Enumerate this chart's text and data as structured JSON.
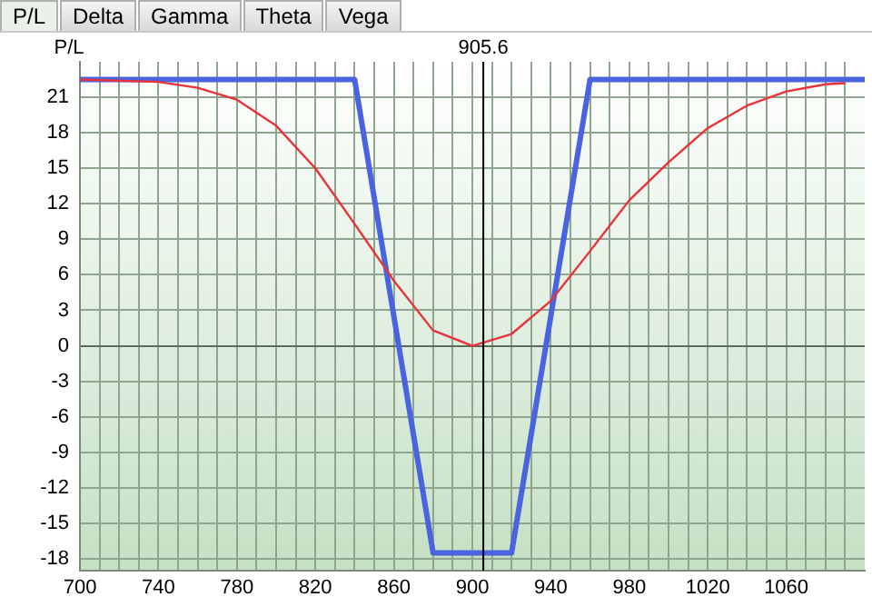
{
  "chart_data": {
    "type": "line",
    "ylabel": "P/L",
    "annotations": [
      "P/L",
      "Delta",
      "Gamma",
      "Theta",
      "Vega"
    ],
    "series": [
      {
        "color": "#4a64e0",
        "x": [
          700,
          840,
          880,
          920,
          960,
          1100
        ],
        "values": [
          22.5,
          22.5,
          -17.5,
          -17.5,
          22.5,
          22.5
        ]
      },
      {
        "color": "#e8333a",
        "x": [
          700,
          740,
          760,
          780,
          800,
          820,
          840,
          860,
          880,
          900,
          920,
          940,
          960,
          980,
          1000,
          1020,
          1040,
          1060,
          1080,
          1090
        ],
        "values": [
          22.5,
          22.3,
          21.8,
          20.8,
          18.6,
          15,
          10.3,
          5.5,
          1.3,
          0,
          1,
          3.8,
          8,
          12.3,
          15.5,
          18.4,
          20.3,
          21.5,
          22.1,
          22.2
        ]
      }
    ],
    "xlim": [
      700,
      1100
    ],
    "xticks": [
      700,
      {
        "value": 710,
        "label": null
      },
      {
        "value": 720,
        "label": null
      },
      {
        "value": 730,
        "label": null
      },
      740,
      {
        "value": 750,
        "label": null
      },
      {
        "value": 760,
        "label": null
      },
      {
        "value": 770,
        "label": null
      },
      780,
      {
        "value": 790,
        "label": null
      },
      {
        "value": 800,
        "label": null
      },
      {
        "value": 810,
        "label": null
      },
      820,
      {
        "value": 830,
        "label": null
      },
      {
        "value": 840,
        "label": null
      },
      {
        "value": 850,
        "label": null
      },
      860,
      {
        "value": 870,
        "label": null
      },
      {
        "value": 880,
        "label": null
      },
      {
        "value": 890,
        "label": null
      },
      900,
      {
        "value": 910,
        "label": null
      },
      {
        "value": 920,
        "label": null
      },
      {
        "value": 930,
        "label": null
      },
      940,
      {
        "value": 950,
        "label": null
      },
      {
        "value": 960,
        "label": null
      },
      {
        "value": 970,
        "label": null
      },
      980,
      {
        "value": 990,
        "label": null
      },
      {
        "value": 1000,
        "label": null
      },
      {
        "value": 1010,
        "label": null
      },
      1020,
      {
        "value": 1030,
        "label": null
      },
      {
        "value": 1040,
        "label": null
      },
      {
        "value": 1050,
        "label": null
      },
      1060,
      {
        "value": 1070,
        "label": null
      },
      {
        "value": 1080,
        "label": null
      },
      {
        "value": 1090,
        "label": null
      }
    ],
    "ylim": [
      -19,
      24
    ],
    "yticks": [
      -18,
      -15,
      -12,
      -9,
      -6,
      -3,
      0,
      3,
      6,
      9,
      12,
      15,
      18,
      21
    ],
    "ref_lines": [
      {
        "axis": "x",
        "value": 905.6,
        "label": "905.6",
        "color": "#000000"
      }
    ],
    "grid": true,
    "legend": false,
    "marker": "none",
    "line_style": "solid"
  }
}
